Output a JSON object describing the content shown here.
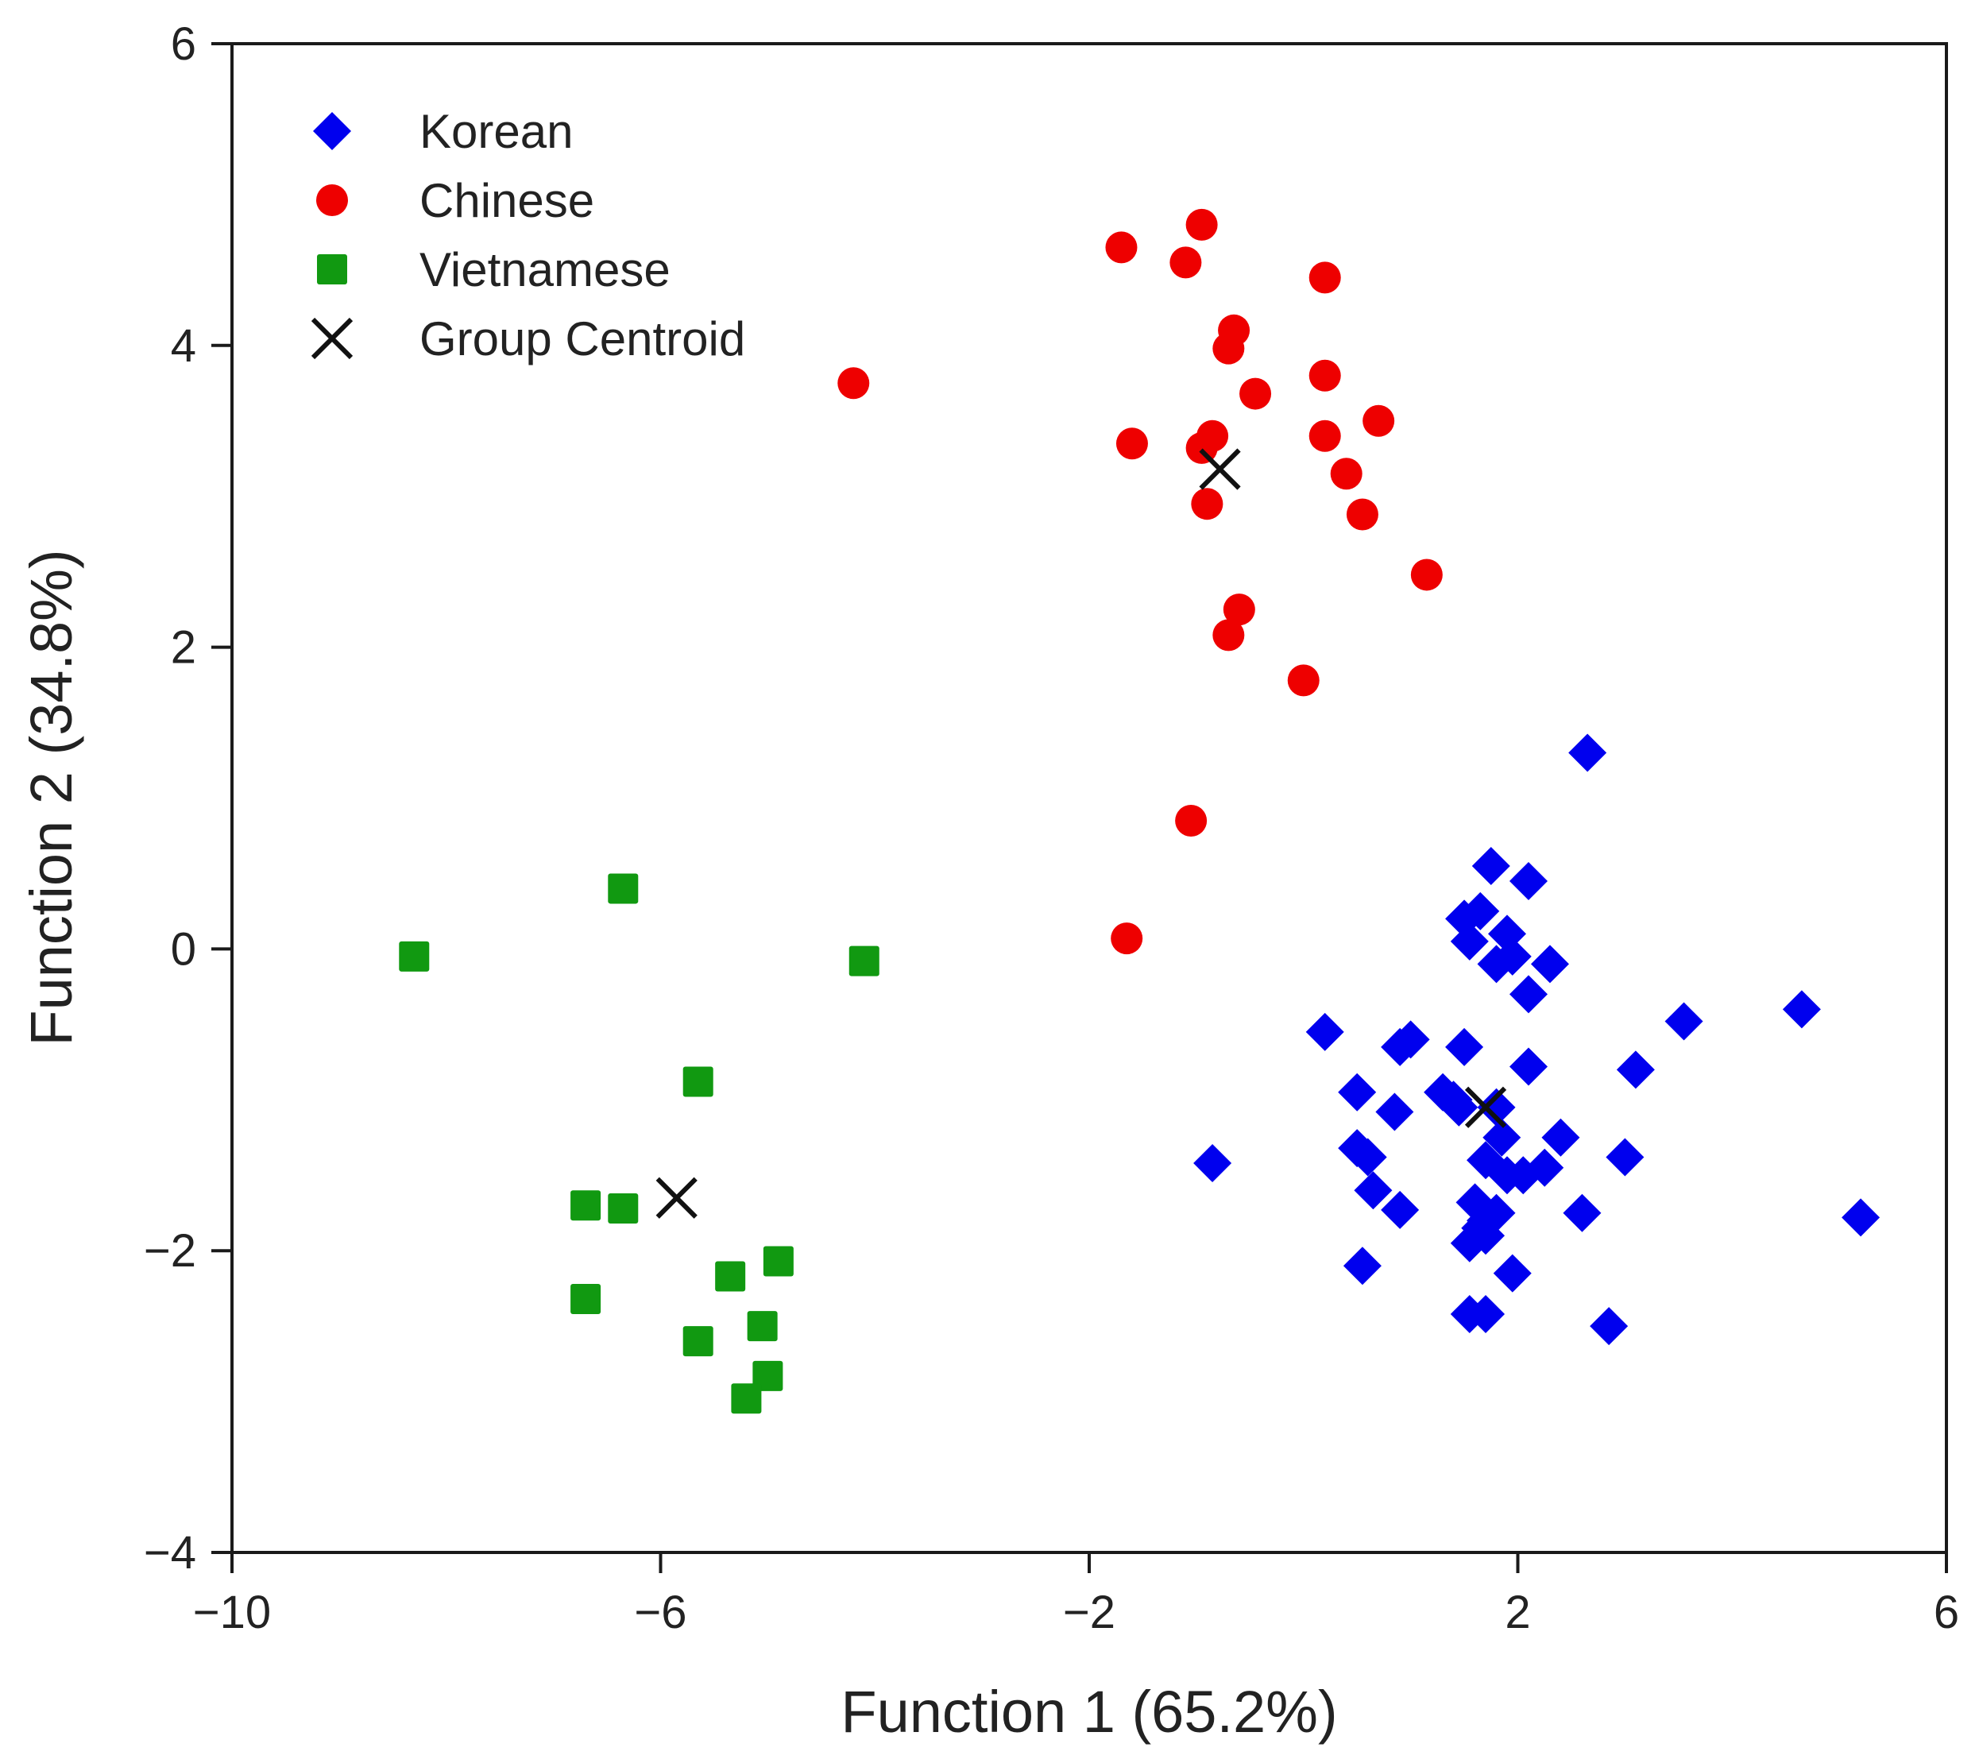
{
  "chart_data": {
    "type": "scatter",
    "title": "",
    "xlabel": "Function 1 (65.2%)",
    "ylabel": "Function 2 (34.8%)",
    "xlim": [
      -10,
      6
    ],
    "ylim": [
      -4,
      6
    ],
    "xticks": [
      -10,
      -6,
      -2,
      2,
      6
    ],
    "yticks": [
      -4,
      -2,
      0,
      2,
      4,
      6
    ],
    "xtick_labels": [
      "−10",
      "−6",
      "−2",
      "2",
      "6"
    ],
    "ytick_labels": [
      "−4",
      "−2",
      "0",
      "2",
      "4",
      "6"
    ],
    "legend_position": "top-left",
    "series": [
      {
        "name": "Korean",
        "marker": "diamond",
        "color": "#0000ee",
        "points": [
          [
            2.65,
            1.3
          ],
          [
            1.75,
            0.55
          ],
          [
            2.1,
            0.45
          ],
          [
            1.5,
            0.2
          ],
          [
            1.65,
            0.25
          ],
          [
            1.55,
            0.05
          ],
          [
            1.9,
            0.1
          ],
          [
            1.8,
            -0.1
          ],
          [
            1.95,
            -0.05
          ],
          [
            2.3,
            -0.1
          ],
          [
            2.1,
            -0.3
          ],
          [
            4.65,
            -0.4
          ],
          [
            3.55,
            -0.48
          ],
          [
            0.2,
            -0.55
          ],
          [
            0.9,
            -0.65
          ],
          [
            1.0,
            -0.6
          ],
          [
            1.5,
            -0.65
          ],
          [
            3.1,
            -0.8
          ],
          [
            2.1,
            -0.78
          ],
          [
            0.5,
            -0.95
          ],
          [
            1.3,
            -0.95
          ],
          [
            1.4,
            -1.0
          ],
          [
            1.45,
            -1.05
          ],
          [
            0.85,
            -1.08
          ],
          [
            1.8,
            -1.05
          ],
          [
            1.85,
            -1.25
          ],
          [
            2.4,
            -1.25
          ],
          [
            -0.85,
            -1.42
          ],
          [
            0.5,
            -1.32
          ],
          [
            0.6,
            -1.38
          ],
          [
            1.7,
            -1.4
          ],
          [
            1.9,
            -1.5
          ],
          [
            2.05,
            -1.5
          ],
          [
            2.25,
            -1.45
          ],
          [
            3.0,
            -1.38
          ],
          [
            0.65,
            -1.6
          ],
          [
            0.9,
            -1.73
          ],
          [
            1.6,
            -1.68
          ],
          [
            1.7,
            -1.8
          ],
          [
            1.8,
            -1.75
          ],
          [
            1.7,
            -1.9
          ],
          [
            1.55,
            -1.95
          ],
          [
            1.65,
            -1.85
          ],
          [
            2.6,
            -1.75
          ],
          [
            5.2,
            -1.78
          ],
          [
            0.55,
            -2.1
          ],
          [
            1.95,
            -2.15
          ],
          [
            1.55,
            -2.42
          ],
          [
            1.7,
            -2.42
          ],
          [
            2.85,
            -2.5
          ]
        ]
      },
      {
        "name": "Chinese",
        "marker": "circle",
        "color": "#ee0000",
        "points": [
          [
            -1.7,
            4.65
          ],
          [
            -0.95,
            4.8
          ],
          [
            -1.1,
            4.55
          ],
          [
            0.2,
            4.45
          ],
          [
            -0.65,
            4.1
          ],
          [
            -0.7,
            3.98
          ],
          [
            -4.2,
            3.75
          ],
          [
            0.2,
            3.8
          ],
          [
            -0.45,
            3.68
          ],
          [
            0.7,
            3.5
          ],
          [
            -1.6,
            3.35
          ],
          [
            -0.85,
            3.4
          ],
          [
            -0.95,
            3.32
          ],
          [
            0.2,
            3.4
          ],
          [
            0.4,
            3.15
          ],
          [
            -0.9,
            2.95
          ],
          [
            0.55,
            2.88
          ],
          [
            1.15,
            2.48
          ],
          [
            -0.6,
            2.25
          ],
          [
            -0.7,
            2.08
          ],
          [
            0.0,
            1.78
          ],
          [
            -1.05,
            0.85
          ],
          [
            -1.65,
            0.07
          ]
        ]
      },
      {
        "name": "Vietnamese",
        "marker": "square",
        "color": "#119911",
        "points": [
          [
            -6.35,
            0.4
          ],
          [
            -8.3,
            -0.05
          ],
          [
            -4.1,
            -0.08
          ],
          [
            -5.65,
            -0.88
          ],
          [
            -6.7,
            -1.7
          ],
          [
            -6.35,
            -1.72
          ],
          [
            -5.35,
            -2.17
          ],
          [
            -4.9,
            -2.07
          ],
          [
            -6.7,
            -2.32
          ],
          [
            -5.05,
            -2.5
          ],
          [
            -5.65,
            -2.6
          ],
          [
            -5.0,
            -2.83
          ],
          [
            -5.2,
            -2.98
          ]
        ]
      },
      {
        "name": "Group Centroid",
        "marker": "x",
        "color": "#111111",
        "points": [
          [
            -0.78,
            3.18
          ],
          [
            1.7,
            -1.05
          ],
          [
            -5.85,
            -1.65
          ]
        ]
      }
    ]
  }
}
